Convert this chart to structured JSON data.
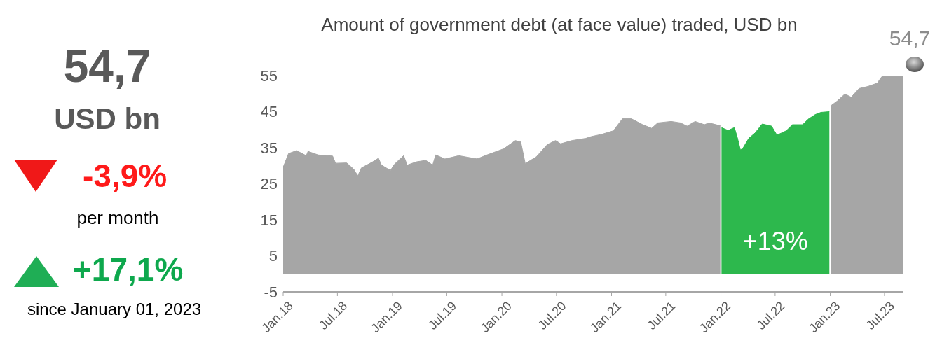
{
  "chart_data": [
    {
      "type": "other",
      "annotations": [
        "54,7",
        "USD bn",
        "-3,9%",
        "per month",
        "+17,1%",
        "since January 01, 2023"
      ]
    },
    {
      "type": "area",
      "title": "Amount of government debt (at face value) traded, USD bn",
      "xlim": [
        "2018-01-01",
        "2023-08-31"
      ],
      "xticks": [
        {
          "value": "2018-01-01",
          "label": "Jan.18"
        },
        {
          "value": "2018-07-01",
          "label": "Jul.18"
        },
        {
          "value": "2019-01-01",
          "label": "Jan.19"
        },
        {
          "value": "2019-07-01",
          "label": "Jul.19"
        },
        {
          "value": "2020-01-01",
          "label": "Jan.20"
        },
        {
          "value": "2020-07-01",
          "label": "Jul.20"
        },
        {
          "value": "2021-01-01",
          "label": "Jan.21"
        },
        {
          "value": "2021-07-01",
          "label": "Jul.21"
        },
        {
          "value": "2022-01-01",
          "label": "Jan.22"
        },
        {
          "value": "2022-07-01",
          "label": "Jul.22"
        },
        {
          "value": "2023-01-01",
          "label": "Jan.23"
        },
        {
          "value": "2023-07-01",
          "label": "Jul.23"
        }
      ],
      "ylim": [
        -5,
        55
      ],
      "yticks": [
        -5,
        5,
        15,
        25,
        35,
        45,
        55
      ],
      "grid": false,
      "legend": false,
      "annotations": [
        "+13%",
        {
          "text": "54,7",
          "x": "2023-08-31",
          "y": 54.7
        }
      ],
      "series": [
        {
          "color": "#a6a6a6",
          "x": [
            "2018-01-01",
            "2018-01-19",
            "2018-02-15",
            "2018-03-19",
            "2018-03-25",
            "2018-04-28",
            "2018-06-15",
            "2018-06-25",
            "2018-08-01",
            "2018-08-25",
            "2018-09-07",
            "2018-09-19",
            "2018-10-25",
            "2018-11-15",
            "2018-11-25",
            "2018-12-25",
            "2019-01-07",
            "2019-02-07",
            "2019-02-19",
            "2019-03-22",
            "2019-04-22",
            "2019-05-15",
            "2019-05-25",
            "2019-06-25",
            "2019-08-10",
            "2019-10-10",
            "2019-11-12",
            "2020-01-07",
            "2020-02-15",
            "2020-03-04",
            "2020-03-19",
            "2020-04-25",
            "2020-06-01",
            "2020-06-28",
            "2020-07-15",
            "2020-08-22",
            "2020-10-07",
            "2020-10-25",
            "2020-11-28",
            "2021-01-07",
            "2021-02-07",
            "2021-03-07",
            "2021-04-15",
            "2021-05-15",
            "2021-06-04",
            "2021-07-19",
            "2021-08-19",
            "2021-09-10",
            "2021-10-07",
            "2021-11-07",
            "2021-11-22",
            "2021-12-30"
          ],
          "values": [
            29.6,
            33.4,
            34.2,
            32.8,
            34,
            33,
            32.7,
            30.7,
            30.8,
            29,
            27.2,
            29.4,
            31,
            32.1,
            30.2,
            28.7,
            30.4,
            32.8,
            30.2,
            31.1,
            31.5,
            30.2,
            33,
            31.9,
            32.8,
            31.9,
            33,
            34.7,
            37,
            36.6,
            30.6,
            32.5,
            35.9,
            37,
            36.1,
            37,
            37.6,
            38.1,
            38.7,
            39.7,
            43.1,
            43.1,
            41.4,
            40.4,
            41.9,
            42.3,
            41.9,
            41,
            42.3,
            41.4,
            41.9,
            41.1
          ]
        },
        {
          "color": "#2db84d",
          "x": [
            "2022-01-03",
            "2022-01-25",
            "2022-02-15",
            "2022-02-25",
            "2022-03-07",
            "2022-03-15",
            "2022-04-04",
            "2022-04-25",
            "2022-05-19",
            "2022-06-19",
            "2022-07-07",
            "2022-08-07",
            "2022-08-28",
            "2022-10-01",
            "2022-10-19",
            "2022-11-12",
            "2022-12-01",
            "2022-12-29"
          ],
          "values": [
            40.6,
            39.8,
            40.6,
            37.8,
            34.4,
            34.8,
            37.6,
            39.1,
            41.6,
            41,
            38.5,
            39.7,
            41.4,
            41.4,
            42.9,
            44.2,
            44.8,
            45
          ]
        },
        {
          "color": "#a6a6a6",
          "x": [
            "2023-01-04",
            "2023-01-25",
            "2023-02-19",
            "2023-03-12",
            "2023-04-07",
            "2023-05-07",
            "2023-06-07",
            "2023-06-22",
            "2023-08-31"
          ],
          "values": [
            46.7,
            48,
            49.9,
            49,
            51.4,
            52,
            52.9,
            54.7,
            54.7
          ]
        }
      ]
    }
  ]
}
